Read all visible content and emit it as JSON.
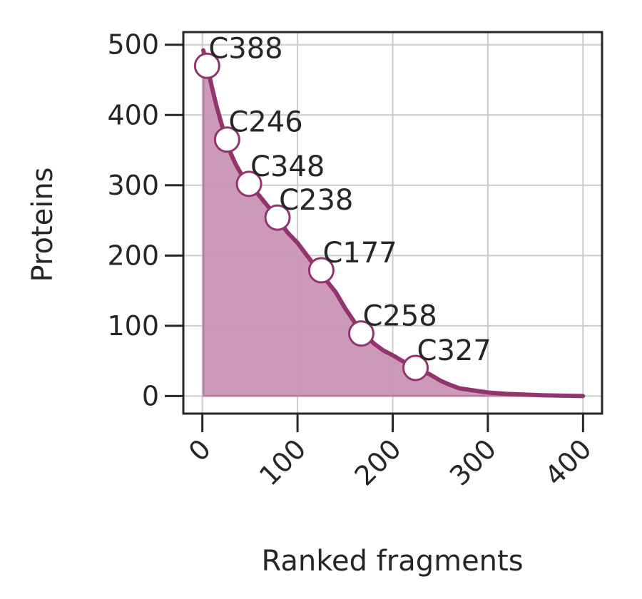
{
  "chart_data": {
    "type": "area",
    "xlabel": "Ranked fragments",
    "ylabel": "Proteins",
    "xlim": [
      -20,
      420
    ],
    "ylim": [
      -25,
      518
    ],
    "x_ticks": [
      0,
      100,
      200,
      300,
      400
    ],
    "y_ticks": [
      0,
      100,
      200,
      300,
      400,
      500
    ],
    "grid": true,
    "colors": {
      "line": "#93346e",
      "fill": "#c995b4",
      "grid": "#cccccc",
      "axis": "#262626",
      "marker_face": "#ffffff",
      "marker_edge": "#93346e"
    },
    "series": [
      {
        "x": [
          1,
          5,
          10,
          15,
          20,
          25,
          30,
          35,
          40,
          45,
          50,
          60,
          70,
          80,
          90,
          100,
          110,
          120,
          130,
          140,
          150,
          160,
          170,
          180,
          190,
          200,
          210,
          220,
          230,
          240,
          250,
          260,
          270,
          280,
          290,
          300,
          320,
          340,
          360,
          380,
          400
        ],
        "values": [
          492,
          470,
          440,
          412,
          388,
          365,
          345,
          330,
          318,
          308,
          300,
          285,
          268,
          250,
          232,
          218,
          200,
          182,
          165,
          148,
          125,
          105,
          90,
          75,
          65,
          58,
          50,
          43,
          37,
          30,
          22,
          16,
          11,
          9,
          7,
          5,
          3,
          2,
          1,
          0.5,
          0
        ]
      }
    ],
    "highlighted_points": [
      {
        "label": "C388",
        "x": 5,
        "y": 470
      },
      {
        "label": "C246",
        "x": 26,
        "y": 365
      },
      {
        "label": "C348",
        "x": 49,
        "y": 302
      },
      {
        "label": "C238",
        "x": 79,
        "y": 254
      },
      {
        "label": "C177",
        "x": 125,
        "y": 179
      },
      {
        "label": "C258",
        "x": 167,
        "y": 89
      },
      {
        "label": "C327",
        "x": 224,
        "y": 40
      }
    ]
  }
}
